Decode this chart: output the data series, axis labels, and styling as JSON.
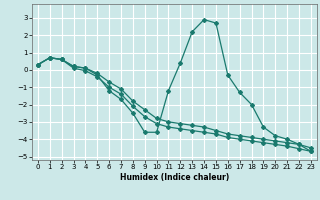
{
  "xlabel": "Humidex (Indice chaleur)",
  "background_color": "#cce8e8",
  "grid_color": "#ffffff",
  "line_color": "#1a7a6e",
  "xlim": [
    -0.5,
    23.5
  ],
  "ylim": [
    -5.2,
    3.8
  ],
  "yticks": [
    -5,
    -4,
    -3,
    -2,
    -1,
    0,
    1,
    2,
    3
  ],
  "xticks": [
    0,
    1,
    2,
    3,
    4,
    5,
    6,
    7,
    8,
    9,
    10,
    11,
    12,
    13,
    14,
    15,
    16,
    17,
    18,
    19,
    20,
    21,
    22,
    23
  ],
  "line_band1_x": [
    0,
    1,
    2,
    3,
    4,
    5,
    6,
    7,
    8,
    9,
    10,
    11,
    12,
    13,
    14,
    15,
    16,
    17,
    18,
    19,
    20,
    21,
    22,
    23
  ],
  "line_band1_y": [
    0.3,
    0.7,
    0.6,
    0.2,
    0.1,
    -0.2,
    -0.7,
    -1.1,
    -1.8,
    -2.3,
    -2.8,
    -3.0,
    -3.1,
    -3.2,
    -3.3,
    -3.5,
    -3.7,
    -3.8,
    -3.9,
    -4.0,
    -4.1,
    -4.2,
    -4.3,
    -4.5
  ],
  "line_band2_x": [
    0,
    1,
    2,
    3,
    4,
    5,
    6,
    7,
    8,
    9,
    10,
    11,
    12,
    13,
    14,
    15,
    16,
    17,
    18,
    19,
    20,
    21,
    22,
    23
  ],
  "line_band2_y": [
    0.3,
    0.7,
    0.6,
    0.1,
    -0.05,
    -0.4,
    -1.0,
    -1.4,
    -2.1,
    -2.7,
    -3.1,
    -3.3,
    -3.4,
    -3.5,
    -3.6,
    -3.7,
    -3.9,
    -4.0,
    -4.1,
    -4.2,
    -4.3,
    -4.4,
    -4.55,
    -4.7
  ],
  "line_zigzag_x": [
    0,
    1,
    2,
    3,
    4,
    5,
    6,
    7,
    8,
    9,
    10,
    11,
    12,
    13,
    14,
    15,
    16,
    17,
    18,
    19,
    20,
    21,
    22,
    23
  ],
  "line_zigzag_y": [
    0.3,
    0.7,
    0.6,
    0.2,
    0.1,
    -0.3,
    -1.2,
    -1.7,
    -2.5,
    -3.6,
    -3.6,
    -1.2,
    0.4,
    2.2,
    2.9,
    2.7,
    -0.3,
    -1.3,
    -2.0,
    -3.3,
    -3.8,
    -4.0,
    -4.3,
    -4.7
  ]
}
